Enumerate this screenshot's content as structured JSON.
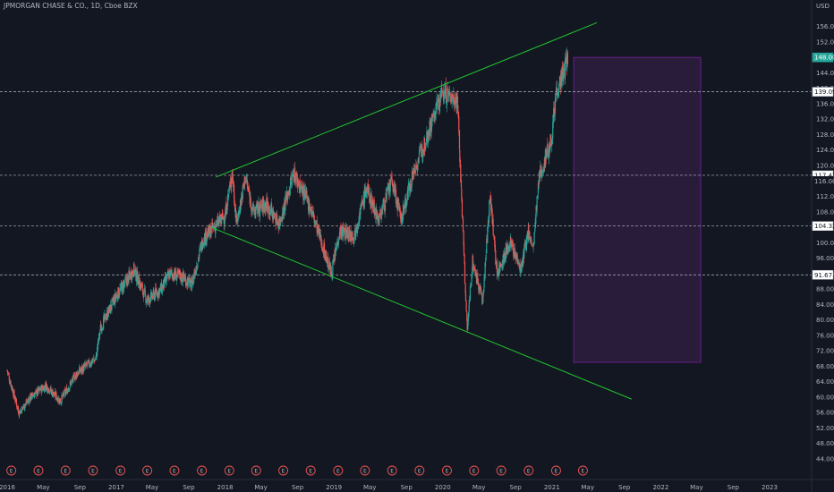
{
  "header": {
    "title": "JPMORGAN CHASE & CO., 1D, Cboe BZX",
    "currency": "USD"
  },
  "colors": {
    "background": "#131722",
    "up": "#26a69a",
    "down": "#ef5350",
    "trendline": "#22c32e",
    "zone_fill": "#2c1d3e",
    "zone_stroke": "#7b1fa2",
    "level_line": "#b2b5be",
    "price_tag": "#26a69a"
  },
  "chart_data": {
    "type": "candlestick",
    "title": "JPMORGAN CHASE & CO., 1D, Cboe BZX",
    "price_axis": {
      "min": 44,
      "max": 158,
      "ticks": [
        "156.00",
        "152.00",
        "144.00",
        "140.00",
        "136.00",
        "132.00",
        "128.00",
        "124.00",
        "120.00",
        "116.00",
        "112.00",
        "108.00",
        "100.00",
        "96.00",
        "92.00",
        "88.00",
        "84.00",
        "80.00",
        "76.00",
        "72.00",
        "68.00",
        "64.00",
        "60.00",
        "56.00",
        "52.00",
        "48.00",
        "44.00"
      ]
    },
    "time_axis": {
      "start": "2016-01-01",
      "end": "2023-04-01",
      "ticks": [
        {
          "label": "2016",
          "date": "2016-01-01"
        },
        {
          "label": "May",
          "date": "2016-05-01"
        },
        {
          "label": "Sep",
          "date": "2016-09-01"
        },
        {
          "label": "2017",
          "date": "2017-01-01"
        },
        {
          "label": "May",
          "date": "2017-05-01"
        },
        {
          "label": "Sep",
          "date": "2017-09-01"
        },
        {
          "label": "2018",
          "date": "2018-01-01"
        },
        {
          "label": "May",
          "date": "2018-05-01"
        },
        {
          "label": "Sep",
          "date": "2018-09-01"
        },
        {
          "label": "2019",
          "date": "2019-01-01"
        },
        {
          "label": "May",
          "date": "2019-05-01"
        },
        {
          "label": "Sep",
          "date": "2019-09-01"
        },
        {
          "label": "2020",
          "date": "2020-01-01"
        },
        {
          "label": "May",
          "date": "2020-05-01"
        },
        {
          "label": "Sep",
          "date": "2020-09-01"
        },
        {
          "label": "2021",
          "date": "2021-01-01"
        },
        {
          "label": "May",
          "date": "2021-05-01"
        },
        {
          "label": "Sep",
          "date": "2021-09-01"
        },
        {
          "label": "2022",
          "date": "2022-01-01"
        },
        {
          "label": "May",
          "date": "2022-05-01"
        },
        {
          "label": "Sep",
          "date": "2022-09-01"
        },
        {
          "label": "2023",
          "date": "2023-01-01"
        }
      ]
    },
    "price_path": [
      [
        "2016-01-01",
        67
      ],
      [
        "2016-02-10",
        56
      ],
      [
        "2016-03-20",
        60
      ],
      [
        "2016-05-10",
        63
      ],
      [
        "2016-06-28",
        59
      ],
      [
        "2016-08-20",
        66
      ],
      [
        "2016-10-25",
        70
      ],
      [
        "2016-11-10",
        78
      ],
      [
        "2016-12-31",
        86
      ],
      [
        "2017-03-01",
        93
      ],
      [
        "2017-04-15",
        85
      ],
      [
        "2017-06-01",
        88
      ],
      [
        "2017-06-30",
        92
      ],
      [
        "2017-08-15",
        91
      ],
      [
        "2017-09-10",
        89
      ],
      [
        "2017-10-20",
        101
      ],
      [
        "2018-01-01",
        107
      ],
      [
        "2018-01-25",
        118
      ],
      [
        "2018-02-09",
        105
      ],
      [
        "2018-03-10",
        117
      ],
      [
        "2018-04-05",
        108
      ],
      [
        "2018-05-20",
        110
      ],
      [
        "2018-07-01",
        105
      ],
      [
        "2018-08-20",
        118
      ],
      [
        "2018-10-15",
        109
      ],
      [
        "2018-12-24",
        92
      ],
      [
        "2019-01-20",
        103
      ],
      [
        "2019-03-10",
        102
      ],
      [
        "2019-04-20",
        114
      ],
      [
        "2019-06-01",
        106
      ],
      [
        "2019-07-15",
        116
      ],
      [
        "2019-08-15",
        106
      ],
      [
        "2019-09-20",
        117
      ],
      [
        "2019-11-01",
        126
      ],
      [
        "2019-12-31",
        139
      ],
      [
        "2020-01-20",
        138
      ],
      [
        "2020-02-20",
        137
      ],
      [
        "2020-03-23",
        77
      ],
      [
        "2020-04-10",
        95
      ],
      [
        "2020-05-15",
        85
      ],
      [
        "2020-06-08",
        113
      ],
      [
        "2020-07-01",
        92
      ],
      [
        "2020-08-15",
        100
      ],
      [
        "2020-09-20",
        93
      ],
      [
        "2020-10-15",
        103
      ],
      [
        "2020-10-30",
        98
      ],
      [
        "2020-11-20",
        117
      ],
      [
        "2020-12-31",
        127
      ],
      [
        "2021-01-15",
        139
      ],
      [
        "2021-02-10",
        144
      ],
      [
        "2021-02-25",
        148
      ]
    ],
    "levels": [
      {
        "label": "139.09",
        "value": 139.09
      },
      {
        "label": "117.47",
        "value": 117.47
      },
      {
        "label": "104.32",
        "value": 104.32
      },
      {
        "label": "91.67",
        "value": 91.67
      }
    ],
    "trendlines": [
      {
        "from": [
          "2017-12-01",
          117
        ],
        "to": [
          "2021-06-01",
          157
        ]
      },
      {
        "from": [
          "2017-11-15",
          104
        ],
        "to": [
          "2021-09-25",
          59.5
        ]
      }
    ],
    "zone": {
      "from": [
        "2021-03-15",
        148
      ],
      "to": [
        "2022-05-15",
        69
      ]
    },
    "last_price": {
      "label": "148.00",
      "value": 148.0
    },
    "marker_label": "E",
    "price_tags_extra": [
      {
        "label": "116.00",
        "value": 116.0
      }
    ]
  }
}
